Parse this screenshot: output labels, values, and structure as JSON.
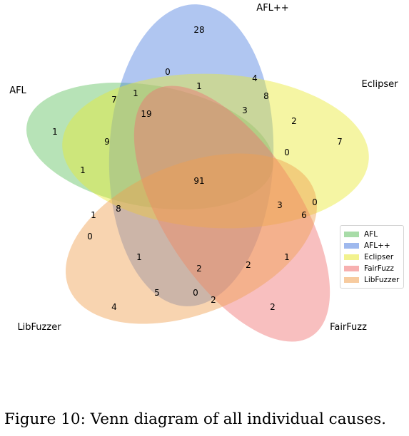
{
  "sets": [
    {
      "id": "afl",
      "name": "AFL",
      "color": "#60c060"
    },
    {
      "id": "aflpp",
      "name": "AFL++",
      "color": "#5080e0"
    },
    {
      "id": "eclipser",
      "name": "Eclipser",
      "color": "#e8e832"
    },
    {
      "id": "fairfuzz",
      "name": "FairFuzz",
      "color": "#f07070"
    },
    {
      "id": "libfuzzer",
      "name": "LibFuzzer",
      "color": "#f0a050"
    }
  ],
  "regions": [
    {
      "sets": "aflpp",
      "count": 28
    },
    {
      "sets": "afl+aflpp+fairfuzz",
      "count": 0
    },
    {
      "sets": "aflpp+eclipser",
      "count": 4
    },
    {
      "sets": "aflpp+eclipser+fairfuzz",
      "count": 1
    },
    {
      "sets": "afl+aflpp",
      "count": 7
    },
    {
      "sets": "afl+aflpp+fairfuzz+libfuzzer",
      "count": 1
    },
    {
      "sets": "aflpp+eclipser+fairfuzz+libfuzzer",
      "count": 8
    },
    {
      "sets": "afl+aflpp+eclipser+fairfuzz",
      "count": 19
    },
    {
      "sets": "aflpp+eclipser+libfuzzer",
      "count": 3
    },
    {
      "sets": "eclipser+libfuzzer",
      "count": 2
    },
    {
      "sets": "afl",
      "count": 1
    },
    {
      "sets": "eclipser",
      "count": 7
    },
    {
      "sets": "afl+eclipser",
      "count": 9
    },
    {
      "sets": "eclipser+fairfuzz+libfuzzer",
      "count": 0
    },
    {
      "sets": "afl+eclipser+libfuzzer",
      "count": 1
    },
    {
      "sets": "all",
      "count": 91
    },
    {
      "sets": "eclipser+fairfuzz",
      "count": 0
    },
    {
      "sets": "afl+eclipser+fairfuzz+libfuzzer",
      "count": 3
    },
    {
      "sets": "afl+eclipser+fairfuzz",
      "count": 6
    },
    {
      "sets": "afl+libfuzzer",
      "count": 1
    },
    {
      "sets": "afl+aflpp+eclipser+libfuzzer",
      "count": 8
    },
    {
      "sets": "afl+fairfuzz+libfuzzer",
      "count": 0
    },
    {
      "sets": "afl+fairfuzz",
      "count": 1
    },
    {
      "sets": "aflpp+libfuzzer",
      "count": 1
    },
    {
      "sets": "aflpp+fairfuzz+libfuzzer",
      "count": 2
    },
    {
      "sets": "afl+aflpp+libfuzzer",
      "count": 2
    },
    {
      "sets": "libfuzzer",
      "count": 4
    },
    {
      "sets": "aflpp+fairfuzz",
      "count": 5
    },
    {
      "sets": "fairfuzz+libfuzzer",
      "count": 2
    },
    {
      "sets": "afl+aflpp+eclipser",
      "count": 0
    },
    {
      "sets": "fairfuzz",
      "count": 2
    }
  ],
  "caption": "Figure 10: Venn diagram of all individual causes."
}
